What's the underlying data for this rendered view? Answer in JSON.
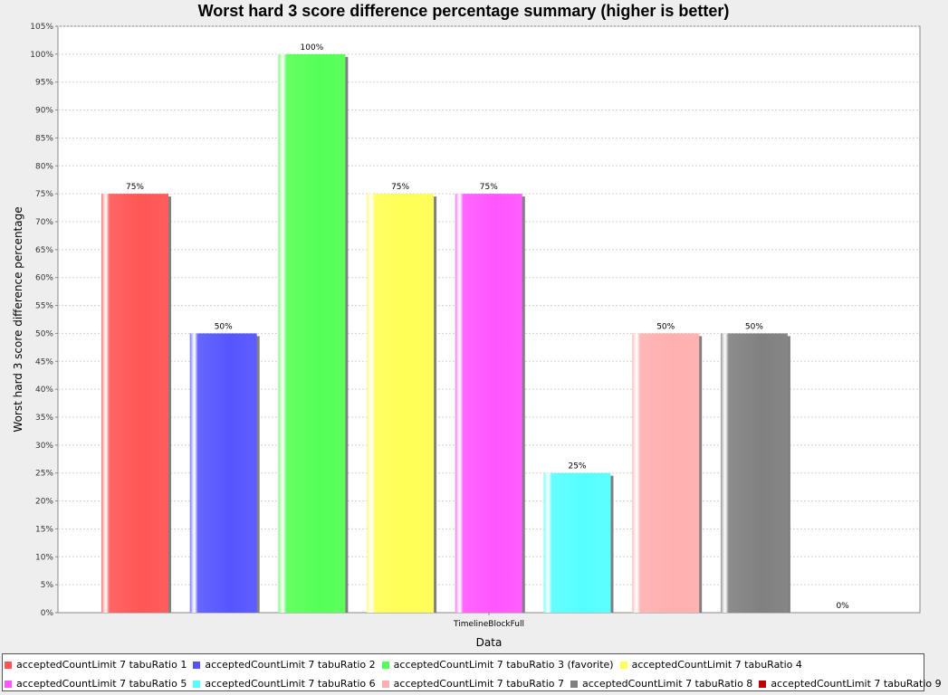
{
  "chart_data": {
    "type": "bar",
    "title": "Worst hard 3 score difference percentage summary (higher is better)",
    "xlabel": "Data",
    "ylabel": "Worst hard 3 score difference percentage",
    "categories": [
      "TimelineBlockFull"
    ],
    "ylim": [
      0,
      105
    ],
    "y_ticks": [
      "0%",
      "5%",
      "10%",
      "15%",
      "20%",
      "25%",
      "30%",
      "35%",
      "40%",
      "45%",
      "50%",
      "55%",
      "60%",
      "65%",
      "70%",
      "75%",
      "80%",
      "85%",
      "90%",
      "95%",
      "100%",
      "105%"
    ],
    "grid": true,
    "legend_position": "bottom",
    "series": [
      {
        "name": "acceptedCountLimit 7 tabuRatio 1",
        "values": [
          75
        ],
        "label": "75%",
        "color": "#ff5555"
      },
      {
        "name": "acceptedCountLimit 7 tabuRatio 2",
        "values": [
          50
        ],
        "label": "50%",
        "color": "#5555ff"
      },
      {
        "name": "acceptedCountLimit 7 tabuRatio 3 (favorite)",
        "values": [
          100
        ],
        "label": "100%",
        "color": "#55ff55"
      },
      {
        "name": "acceptedCountLimit 7 tabuRatio 4",
        "values": [
          75
        ],
        "label": "75%",
        "color": "#ffff55"
      },
      {
        "name": "acceptedCountLimit 7 tabuRatio 5",
        "values": [
          75
        ],
        "label": "75%",
        "color": "#ff55ff"
      },
      {
        "name": "acceptedCountLimit 7 tabuRatio 6",
        "values": [
          25
        ],
        "label": "25%",
        "color": "#55ffff"
      },
      {
        "name": "acceptedCountLimit 7 tabuRatio 7",
        "values": [
          50
        ],
        "label": "50%",
        "color": "#ffafaf"
      },
      {
        "name": "acceptedCountLimit 7 tabuRatio 8",
        "values": [
          50
        ],
        "label": "50%",
        "color": "#808080"
      },
      {
        "name": "acceptedCountLimit 7 tabuRatio 9",
        "values": [
          0
        ],
        "label": "0%",
        "color": "#c00000"
      }
    ]
  }
}
